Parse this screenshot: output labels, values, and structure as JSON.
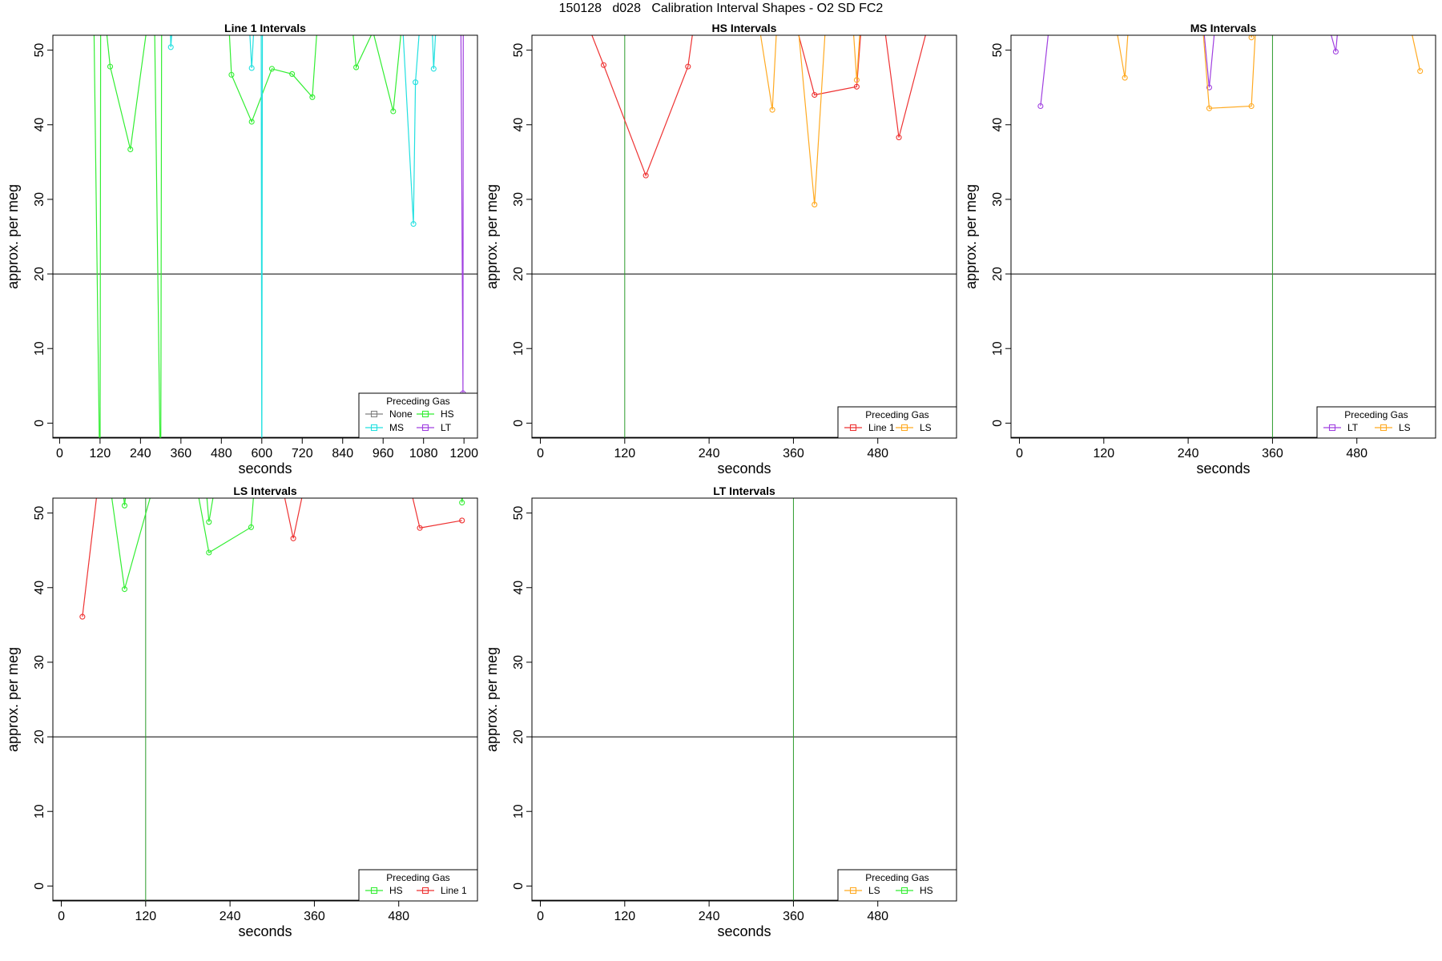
{
  "title": "150128   d028   Calibration Interval Shapes - O2 SD FC2",
  "colors": {
    "None": "#808080",
    "HS": "#33ee33",
    "MS": "#22e0e0",
    "LT": "#a040e0",
    "Line 1": "#ee3333",
    "LS": "#ffaa22",
    "ref_line": "#000000",
    "vline": "#2a9a2a"
  },
  "chart_data": [
    {
      "type": "line",
      "title": "Line 1 Intervals",
      "xlabel": "seconds",
      "ylabel": "approx. per meg",
      "xlim": [
        -20,
        1240
      ],
      "ylim": [
        -2,
        52
      ],
      "xticks": [
        0,
        120,
        240,
        360,
        480,
        600,
        720,
        840,
        960,
        1080,
        1200
      ],
      "yticks": [
        0,
        10,
        20,
        30,
        40,
        50
      ],
      "hline": 20,
      "legend": {
        "title": "Preceding Gas",
        "position": "bottom-right",
        "columns": 2,
        "entries": [
          "None",
          "HS",
          "MS",
          "LT"
        ]
      },
      "series": [
        {
          "gas": "HS",
          "points": [
            [
              100,
              60
            ],
            [
              120,
              -10
            ],
            [
              122,
              60
            ],
            [
              150,
              47.8
            ],
            [
              210,
              36.7
            ],
            [
              280,
              60
            ],
            [
              300,
              -10
            ],
            [
              303,
              60
            ]
          ]
        },
        {
          "gas": "HS",
          "points": [
            [
              495,
              60
            ],
            [
              510,
              46.7
            ],
            [
              570,
              40.4
            ],
            [
              630,
              47.5
            ],
            [
              690,
              46.8
            ],
            [
              750,
              43.7
            ],
            [
              775,
              60
            ]
          ]
        },
        {
          "gas": "HS",
          "points": [
            [
              855,
              60
            ],
            [
              880,
              47.7
            ],
            [
              930,
              52.5
            ],
            [
              990,
              41.8
            ],
            [
              1030,
              60
            ]
          ]
        },
        {
          "gas": "MS",
          "points": [
            [
              325,
              60
            ],
            [
              330,
              50.4
            ],
            [
              345,
              60
            ]
          ]
        },
        {
          "gas": "MS",
          "points": [
            [
              555,
              60
            ],
            [
              570,
              47.6
            ],
            [
              585,
              60
            ],
            [
              598,
              60
            ],
            [
              600,
              -10
            ],
            [
              602,
              60
            ]
          ]
        },
        {
          "gas": "MS",
          "points": [
            [
              1010,
              60
            ],
            [
              1050,
              26.7
            ],
            [
              1056,
              45.7
            ],
            [
              1080,
              60
            ]
          ]
        },
        {
          "gas": "MS",
          "points": [
            [
              1100,
              60
            ],
            [
              1110,
              47.5
            ],
            [
              1125,
              60
            ]
          ]
        },
        {
          "gas": "LT",
          "points": [
            [
              1160,
              60
            ],
            [
              1175,
              53
            ],
            [
              1190,
              60
            ],
            [
              1197,
              4
            ],
            [
              1198,
              60
            ]
          ]
        },
        {
          "gas": "HS",
          "points": [
            [
              1165,
              60
            ],
            [
              1180,
              53
            ],
            [
              1192,
              60
            ]
          ]
        }
      ]
    },
    {
      "type": "line",
      "title": "HS Intervals",
      "xlabel": "seconds",
      "ylabel": "approx. per meg",
      "xlim": [
        -12,
        592
      ],
      "ylim": [
        -2,
        52
      ],
      "xticks": [
        0,
        120,
        240,
        360,
        480
      ],
      "yticks": [
        0,
        10,
        20,
        30,
        40,
        50
      ],
      "hline": 20,
      "vline": 120,
      "legend": {
        "title": "Preceding Gas",
        "position": "bottom-right",
        "columns": 2,
        "entries": [
          "Line 1",
          "LS"
        ]
      },
      "series": [
        {
          "gas": "Line 1",
          "points": [
            [
              40,
              60
            ],
            [
              90,
              48
            ],
            [
              150,
              33.2
            ],
            [
              210,
              47.8
            ],
            [
              228,
              60
            ]
          ]
        },
        {
          "gas": "Line 1",
          "points": [
            [
              345,
              60
            ],
            [
              390,
              44
            ],
            [
              450,
              45.1
            ],
            [
              462,
              60
            ]
          ]
        },
        {
          "gas": "Line 1",
          "points": [
            [
              480,
              60
            ],
            [
              510,
              38.3
            ],
            [
              570,
              60
            ]
          ]
        },
        {
          "gas": "LS",
          "points": [
            [
              300,
              60
            ],
            [
              330,
              42
            ],
            [
              340,
              60
            ]
          ]
        },
        {
          "gas": "LS",
          "points": [
            [
              360,
              60
            ],
            [
              390,
              29.3
            ],
            [
              410,
              60
            ]
          ]
        },
        {
          "gas": "LS",
          "points": [
            [
              440,
              60
            ],
            [
              450,
              46
            ],
            [
              460,
              60
            ]
          ]
        }
      ]
    },
    {
      "type": "line",
      "title": "MS Intervals",
      "xlabel": "seconds",
      "ylabel": "approx. per meg",
      "xlim": [
        -12,
        592
      ],
      "ylim": [
        -2,
        52
      ],
      "xticks": [
        0,
        120,
        240,
        360,
        480
      ],
      "yticks": [
        0,
        10,
        20,
        30,
        40,
        50
      ],
      "hline": 20,
      "vline": 360,
      "legend": {
        "title": "Preceding Gas",
        "position": "bottom-right",
        "columns": 2,
        "entries": [
          "LT",
          "LS"
        ]
      },
      "series": [
        {
          "gas": "LT",
          "points": [
            [
              30,
              42.5
            ],
            [
              50,
              60
            ]
          ]
        },
        {
          "gas": "LT",
          "points": [
            [
              255,
              60
            ],
            [
              270,
              45
            ],
            [
              285,
              60
            ]
          ]
        },
        {
          "gas": "LT",
          "points": [
            [
              420,
              60
            ],
            [
              450,
              49.8
            ],
            [
              460,
              60
            ]
          ]
        },
        {
          "gas": "LS",
          "points": [
            [
              125,
              60
            ],
            [
              150,
              46.3
            ],
            [
              160,
              60
            ]
          ]
        },
        {
          "gas": "LS",
          "points": [
            [
              255,
              60
            ],
            [
              270,
              42.2
            ],
            [
              330,
              42.5
            ],
            [
              340,
              60
            ]
          ]
        },
        {
          "gas": "LS",
          "points": [
            [
              320,
              60
            ],
            [
              330,
              51.7
            ],
            [
              345,
              60
            ]
          ]
        },
        {
          "gas": "LS",
          "points": [
            [
              540,
              60
            ],
            [
              570,
              47.2
            ]
          ]
        }
      ]
    },
    {
      "type": "line",
      "title": "LS Intervals",
      "xlabel": "seconds",
      "ylabel": "approx. per meg",
      "xlim": [
        -12,
        592
      ],
      "ylim": [
        -2,
        52
      ],
      "xticks": [
        0,
        120,
        240,
        360,
        480
      ],
      "yticks": [
        0,
        10,
        20,
        30,
        40,
        50
      ],
      "hline": 20,
      "vline": 120,
      "legend": {
        "title": "Preceding Gas",
        "position": "bottom-right",
        "columns": 2,
        "entries": [
          "HS",
          "Line 1"
        ]
      },
      "series": [
        {
          "gas": "HS",
          "points": [
            [
              60,
              60
            ],
            [
              90,
              39.8
            ],
            [
              150,
              60
            ]
          ]
        },
        {
          "gas": "HS",
          "points": [
            [
              80,
              60
            ],
            [
              90,
              51
            ],
            [
              100,
              60
            ]
          ]
        },
        {
          "gas": "HS",
          "points": [
            [
              180,
              60
            ],
            [
              210,
              44.7
            ],
            [
              270,
              48.1
            ],
            [
              280,
              60
            ]
          ]
        },
        {
          "gas": "HS",
          "points": [
            [
              200,
              60
            ],
            [
              210,
              48.8
            ],
            [
              230,
              60
            ]
          ]
        },
        {
          "gas": "HS",
          "points": [
            [
              565,
              60
            ],
            [
              570,
              51.4
            ],
            [
              580,
              60
            ]
          ]
        },
        {
          "gas": "Line 1",
          "points": [
            [
              30,
              36.1
            ],
            [
              60,
              60
            ]
          ]
        },
        {
          "gas": "Line 1",
          "points": [
            [
              300,
              60
            ],
            [
              330,
              46.6
            ],
            [
              360,
              60
            ]
          ]
        },
        {
          "gas": "Line 1",
          "points": [
            [
              480,
              60
            ],
            [
              510,
              48
            ],
            [
              570,
              49
            ]
          ]
        }
      ]
    },
    {
      "type": "line",
      "title": "LT Intervals",
      "xlabel": "seconds",
      "ylabel": "approx. per meg",
      "xlim": [
        -12,
        592
      ],
      "ylim": [
        -2,
        52
      ],
      "xticks": [
        0,
        120,
        240,
        360,
        480
      ],
      "yticks": [
        0,
        10,
        20,
        30,
        40,
        50
      ],
      "hline": 20,
      "vline": 360,
      "legend": {
        "title": "Preceding Gas",
        "position": "bottom-right",
        "columns": 2,
        "entries": [
          "LS",
          "HS"
        ]
      },
      "series": []
    }
  ]
}
